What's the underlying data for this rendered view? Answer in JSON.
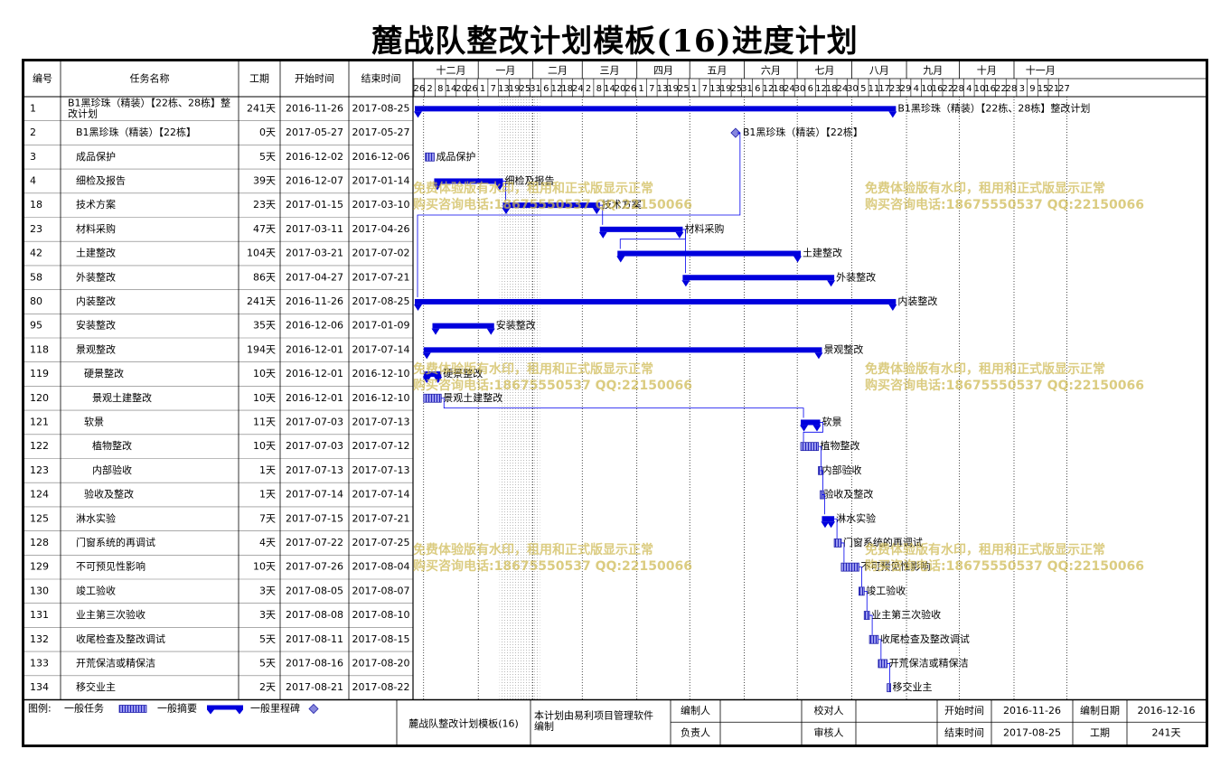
{
  "title": "麓战队整改计划模板(16)进度计划",
  "table": {
    "headers": [
      "编号",
      "任务名称",
      "工期",
      "开始时间",
      "结束时间"
    ],
    "rows": [
      {
        "id": "1",
        "name": "B1黑珍珠（精装）【22栋、28栋】整改计划",
        "indent": 0,
        "duration": "241天",
        "start": "2016-11-26",
        "end": "2017-08-25",
        "type": "summary",
        "bar_label": "B1黑珍珠（精装）【22栋、28栋】整改计划"
      },
      {
        "id": "2",
        "name": "B1黑珍珠（精装）【22栋】",
        "indent": 1,
        "duration": "0天",
        "start": "2017-05-27",
        "end": "2017-05-27",
        "type": "milestone",
        "bar_label": "B1黑珍珠（精装）【22栋】"
      },
      {
        "id": "3",
        "name": "成品保护",
        "indent": 1,
        "duration": "5天",
        "start": "2016-12-02",
        "end": "2016-12-06",
        "type": "task",
        "bar_label": "成品保护"
      },
      {
        "id": "4",
        "name": "细检及报告",
        "indent": 1,
        "duration": "39天",
        "start": "2016-12-07",
        "end": "2017-01-14",
        "type": "summary",
        "bar_label": "细检及报告"
      },
      {
        "id": "18",
        "name": "技术方案",
        "indent": 1,
        "duration": "23天",
        "start": "2017-01-15",
        "end": "2017-03-10",
        "type": "summary",
        "bar_label": "技术方案"
      },
      {
        "id": "23",
        "name": "材料采购",
        "indent": 1,
        "duration": "47天",
        "start": "2017-03-11",
        "end": "2017-04-26",
        "type": "summary",
        "bar_label": "材料采购"
      },
      {
        "id": "42",
        "name": "土建整改",
        "indent": 1,
        "duration": "104天",
        "start": "2017-03-21",
        "end": "2017-07-02",
        "type": "summary",
        "bar_label": "土建整改"
      },
      {
        "id": "58",
        "name": "外装整改",
        "indent": 1,
        "duration": "86天",
        "start": "2017-04-27",
        "end": "2017-07-21",
        "type": "summary",
        "bar_label": "外装整改"
      },
      {
        "id": "80",
        "name": "内装整改",
        "indent": 1,
        "duration": "241天",
        "start": "2016-11-26",
        "end": "2017-08-25",
        "type": "summary",
        "bar_label": "内装整改"
      },
      {
        "id": "95",
        "name": "安装整改",
        "indent": 1,
        "duration": "35天",
        "start": "2016-12-06",
        "end": "2017-01-09",
        "type": "summary",
        "bar_label": "安装整改"
      },
      {
        "id": "118",
        "name": "景观整改",
        "indent": 1,
        "duration": "194天",
        "start": "2016-12-01",
        "end": "2017-07-14",
        "type": "summary",
        "bar_label": "景观整改"
      },
      {
        "id": "119",
        "name": "硬景整改",
        "indent": 2,
        "duration": "10天",
        "start": "2016-12-01",
        "end": "2016-12-10",
        "type": "summary",
        "bar_label": "硬景整改"
      },
      {
        "id": "120",
        "name": "景观土建整改",
        "indent": 3,
        "duration": "10天",
        "start": "2016-12-01",
        "end": "2016-12-10",
        "type": "task",
        "bar_label": "景观土建整改"
      },
      {
        "id": "121",
        "name": "软景",
        "indent": 2,
        "duration": "11天",
        "start": "2017-07-03",
        "end": "2017-07-13",
        "type": "summary",
        "bar_label": "软景"
      },
      {
        "id": "122",
        "name": "植物整改",
        "indent": 3,
        "duration": "10天",
        "start": "2017-07-03",
        "end": "2017-07-12",
        "type": "task",
        "bar_label": "植物整改"
      },
      {
        "id": "123",
        "name": "内部验收",
        "indent": 3,
        "duration": "1天",
        "start": "2017-07-13",
        "end": "2017-07-13",
        "type": "task",
        "bar_label": "内部验收"
      },
      {
        "id": "124",
        "name": "验收及整改",
        "indent": 2,
        "duration": "1天",
        "start": "2017-07-14",
        "end": "2017-07-14",
        "type": "task",
        "bar_label": "验收及整改"
      },
      {
        "id": "125",
        "name": "淋水实验",
        "indent": 1,
        "duration": "7天",
        "start": "2017-07-15",
        "end": "2017-07-21",
        "type": "summary",
        "bar_label": "淋水实验"
      },
      {
        "id": "128",
        "name": "门窗系统的再调试",
        "indent": 1,
        "duration": "4天",
        "start": "2017-07-22",
        "end": "2017-07-25",
        "type": "task",
        "bar_label": "门窗系统的再调试"
      },
      {
        "id": "129",
        "name": "不可预见性影响",
        "indent": 1,
        "duration": "10天",
        "start": "2017-07-26",
        "end": "2017-08-04",
        "type": "task",
        "bar_label": "不可预见性影响"
      },
      {
        "id": "130",
        "name": "竣工验收",
        "indent": 1,
        "duration": "3天",
        "start": "2017-08-05",
        "end": "2017-08-07",
        "type": "task",
        "bar_label": "竣工验收"
      },
      {
        "id": "131",
        "name": "业主第三次验收",
        "indent": 1,
        "duration": "3天",
        "start": "2017-08-08",
        "end": "2017-08-10",
        "type": "task",
        "bar_label": "业主第三次验收"
      },
      {
        "id": "132",
        "name": "收尾检查及整改调试",
        "indent": 1,
        "duration": "5天",
        "start": "2017-08-11",
        "end": "2017-08-15",
        "type": "task",
        "bar_label": "收尾检查及整改调试"
      },
      {
        "id": "133",
        "name": "开荒保洁或精保洁",
        "indent": 1,
        "duration": "5天",
        "start": "2017-08-16",
        "end": "2017-08-20",
        "type": "task",
        "bar_label": "开荒保洁或精保洁"
      },
      {
        "id": "134",
        "name": "移交业主",
        "indent": 1,
        "duration": "2天",
        "start": "2017-08-21",
        "end": "2017-08-22",
        "type": "task",
        "bar_label": "移交业主"
      }
    ]
  },
  "timescale": {
    "months": [
      "十二月",
      "一月",
      "二月",
      "三月",
      "四月",
      "五月",
      "六月",
      "七月",
      "八月",
      "九月",
      "十月",
      "十一月"
    ],
    "day_ticks": [
      "26",
      "2",
      "8",
      "14",
      "20",
      "26",
      "1",
      "7",
      "13",
      "19",
      "25",
      "31",
      "6",
      "12",
      "18",
      "24",
      "2",
      "8",
      "14",
      "20",
      "26",
      "1",
      "7",
      "13",
      "19",
      "25",
      "1",
      "7",
      "13",
      "19",
      "25",
      "31",
      "6",
      "12",
      "18",
      "24",
      "30",
      "6",
      "12",
      "18",
      "24",
      "30",
      "5",
      "11",
      "17",
      "23",
      "29",
      "4",
      "10",
      "16",
      "22",
      "28",
      "4",
      "10",
      "16",
      "22",
      "28",
      "3",
      "9",
      "15",
      "21",
      "27"
    ]
  },
  "chart_data": {
    "type": "gantt",
    "axis_start": "2016-11-26",
    "tick_interval_days": 6,
    "tasks_ref": "table.rows",
    "shaded_period": [
      "2017-01-13",
      "2017-02-05"
    ]
  },
  "watermark": {
    "line1": "免费体验版有水印，租用和正式版显示正常",
    "line2": "购买咨询电话:18675550537 QQ:22150066"
  },
  "legend": {
    "label": "图例:",
    "task": "一般任务",
    "summary": "一般摘要",
    "milestone": "一般里程碑"
  },
  "footer": {
    "project_name": "麓战队整改计划模板(16)",
    "software": "本计划由易利项目管理软件编制",
    "editor_label": "编制人",
    "editor_value": "",
    "owner_label": "负责人",
    "owner_value": "",
    "checker_label": "校对人",
    "checker_value": "",
    "reviewer_label": "审核人",
    "reviewer_value": "",
    "start_label": "开始时间",
    "start_value": "2016-11-26",
    "end_label": "结束时间",
    "end_value": "2017-08-25",
    "date_label": "编制日期",
    "date_value": "2016-12-16",
    "duration_label": "工期",
    "duration_value": "241天"
  },
  "colors": {
    "bar": "#0000dd",
    "task_fill": "#3333cc",
    "link": "#0000ee",
    "watermark": "#cdb950"
  }
}
